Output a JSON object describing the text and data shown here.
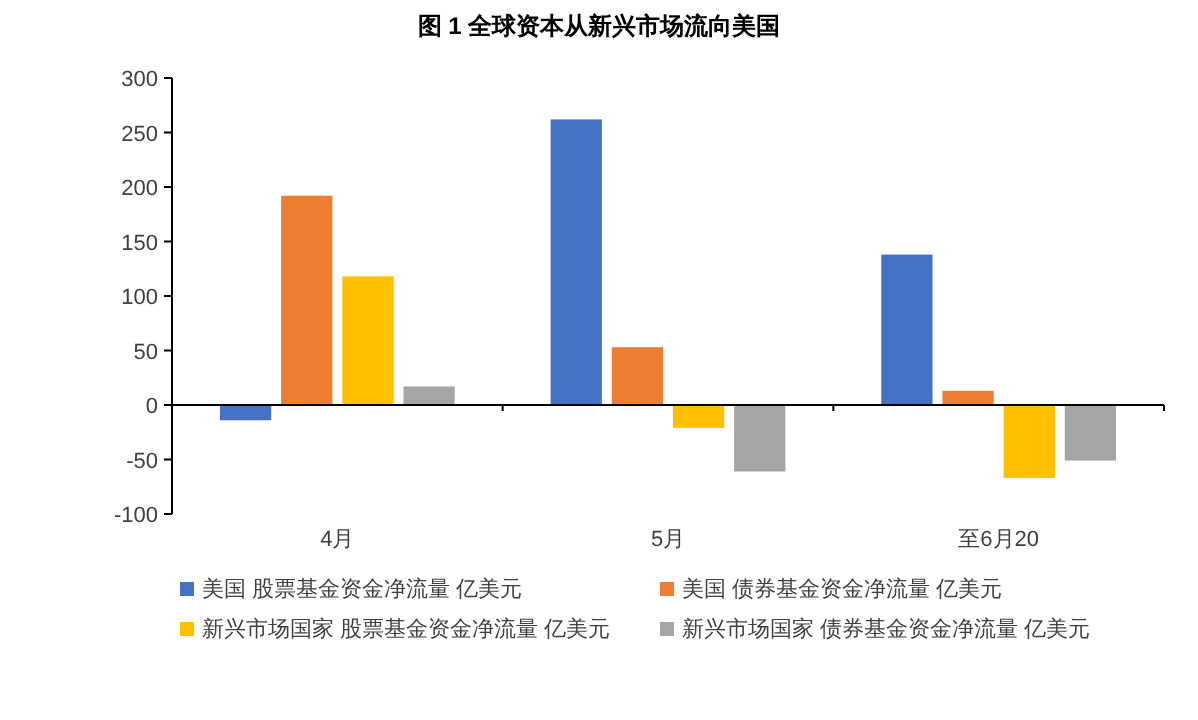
{
  "chart_data": {
    "type": "bar",
    "title": "图 1 全球资本从新兴市场流向美国",
    "categories": [
      "4月",
      "5月",
      "至6月20"
    ],
    "series": [
      {
        "name": "美国 股票基金资金净流量 亿美元",
        "color": "#4472c4",
        "values": [
          -14,
          262,
          138
        ]
      },
      {
        "name": "美国 债券基金资金净流量 亿美元",
        "color": "#ed7d31",
        "values": [
          192,
          53,
          13
        ]
      },
      {
        "name": "新兴市场国家 股票基金资金净流量 亿美元",
        "color": "#ffc000",
        "values": [
          118,
          -21,
          -67
        ]
      },
      {
        "name": "新兴市场国家 债券基金资金净流量 亿美元",
        "color": "#a5a5a5",
        "values": [
          17,
          -61,
          -51
        ]
      }
    ],
    "ylim": [
      -100,
      300
    ],
    "yticks": [
      -100,
      -50,
      0,
      50,
      100,
      150,
      200,
      250,
      300
    ],
    "legend": "bottom"
  }
}
